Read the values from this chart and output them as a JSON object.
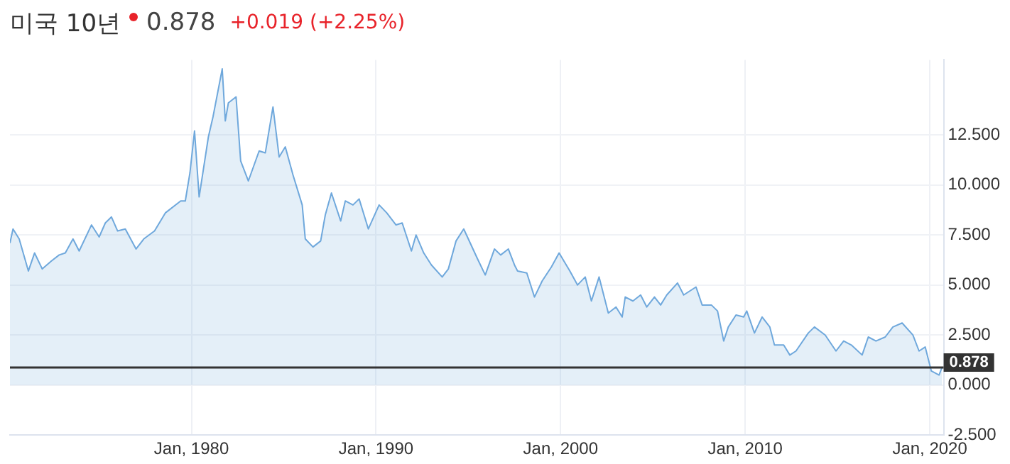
{
  "chart_data": {
    "type": "area",
    "title": "미국 10년",
    "subtitle": "0.878",
    "annotations": [
      "+0.019 (+2.25%)"
    ],
    "x": [
      "1970-03",
      "1970-05",
      "1970-09",
      "1971-03",
      "1971-07",
      "1971-12",
      "1972-06",
      "1972-11",
      "1973-03",
      "1973-08",
      "1973-12",
      "1974-08",
      "1975-01",
      "1975-05",
      "1975-09",
      "1976-01",
      "1976-06",
      "1977-01",
      "1977-06",
      "1978-01",
      "1978-08",
      "1979-06",
      "1979-09",
      "1979-12",
      "1980-03",
      "1980-06",
      "1980-12",
      "1981-03",
      "1981-09",
      "1981-11",
      "1982-01",
      "1982-06",
      "1982-09",
      "1983-02",
      "1983-09",
      "1984-01",
      "1984-06",
      "1984-10",
      "1985-02",
      "1985-07",
      "1986-01",
      "1986-03",
      "1986-08",
      "1987-01",
      "1987-04",
      "1987-08",
      "1988-02",
      "1988-05",
      "1988-10",
      "1989-02",
      "1989-08",
      "1990-03",
      "1990-08",
      "1991-02",
      "1991-06",
      "1991-12",
      "1992-03",
      "1992-08",
      "1993-01",
      "1993-08",
      "1993-12",
      "1994-05",
      "1994-10",
      "1995-07",
      "1995-12",
      "1996-06",
      "1996-10",
      "1997-03",
      "1997-07",
      "1997-09",
      "1998-03",
      "1998-08",
      "1999-01",
      "1999-07",
      "1999-12",
      "2000-07",
      "2000-12",
      "2001-05",
      "2001-09",
      "2002-02",
      "2002-08",
      "2003-01",
      "2003-05",
      "2003-07",
      "2003-12",
      "2004-05",
      "2004-09",
      "2005-02",
      "2005-06",
      "2005-10",
      "2006-05",
      "2006-09",
      "2007-05",
      "2007-09",
      "2008-03",
      "2008-07",
      "2008-11",
      "2009-02",
      "2009-07",
      "2009-12",
      "2010-02",
      "2010-07",
      "2010-12",
      "2011-05",
      "2011-08",
      "2012-02",
      "2012-06",
      "2012-10",
      "2013-06",
      "2013-10",
      "2014-05",
      "2014-12",
      "2015-05",
      "2015-10",
      "2016-05",
      "2016-09",
      "2017-02",
      "2017-08",
      "2018-01",
      "2018-07",
      "2019-02",
      "2019-06",
      "2019-10",
      "2020-02",
      "2020-07",
      "2020-09"
    ],
    "series": [
      {
        "color": "#6fa8dc",
        "values": [
          7.1,
          7.8,
          7.3,
          5.7,
          6.6,
          5.8,
          6.2,
          6.5,
          6.6,
          7.3,
          6.7,
          8.0,
          7.4,
          8.1,
          8.4,
          7.7,
          7.8,
          6.8,
          7.3,
          7.7,
          8.6,
          9.2,
          9.2,
          10.6,
          12.7,
          9.4,
          12.4,
          13.4,
          15.8,
          13.2,
          14.1,
          14.4,
          11.2,
          10.2,
          11.7,
          11.6,
          13.9,
          11.4,
          11.9,
          10.5,
          9.0,
          7.3,
          6.9,
          7.2,
          8.5,
          9.6,
          8.2,
          9.2,
          9.0,
          9.3,
          7.8,
          9.0,
          8.6,
          8.0,
          8.1,
          6.7,
          7.5,
          6.6,
          6.0,
          5.4,
          5.8,
          7.2,
          7.8,
          6.3,
          5.5,
          6.8,
          6.5,
          6.8,
          6.0,
          5.7,
          5.6,
          4.4,
          5.2,
          5.9,
          6.6,
          5.7,
          5.0,
          5.4,
          4.2,
          5.4,
          3.6,
          3.9,
          3.4,
          4.4,
          4.2,
          4.5,
          3.9,
          4.4,
          4.0,
          4.5,
          5.1,
          4.5,
          4.9,
          4.0,
          4.0,
          3.7,
          2.2,
          2.9,
          3.5,
          3.4,
          3.7,
          2.6,
          3.4,
          2.9,
          2.0,
          2.0,
          1.5,
          1.7,
          2.6,
          2.9,
          2.5,
          1.7,
          2.2,
          2.0,
          1.5,
          2.4,
          2.2,
          2.4,
          2.9,
          3.1,
          2.5,
          1.7,
          1.9,
          0.7,
          0.5,
          0.9
        ]
      }
    ],
    "xlim": [
      "1970-03",
      "2020-10"
    ],
    "xticks": [
      {
        "value": "1980-01",
        "label": "Jan, 1980"
      },
      {
        "value": "1990-01",
        "label": "Jan, 1990"
      },
      {
        "value": "2000-01",
        "label": "Jan, 2000"
      },
      {
        "value": "2010-01",
        "label": "Jan, 2010"
      },
      {
        "value": "2020-01",
        "label": "Jan, 2020"
      }
    ],
    "ylim": [
      -2.5,
      16.25
    ],
    "yticks": [
      {
        "value": -2.5,
        "label": "-2.500"
      },
      {
        "value": 0,
        "label": "0.000"
      },
      {
        "value": 2.5,
        "label": "2.500"
      },
      {
        "value": 5,
        "label": "5.000"
      },
      {
        "value": 7.5,
        "label": "7.500"
      },
      {
        "value": 10,
        "label": "10.000"
      },
      {
        "value": 12.5,
        "label": "12.500"
      }
    ],
    "ref_lines": [
      {
        "axis": "y",
        "value": 0.878,
        "label": "0.878",
        "color": "#333333"
      }
    ],
    "grid": true
  }
}
